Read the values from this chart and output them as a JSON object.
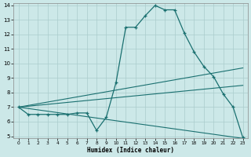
{
  "xlabel": "Humidex (Indice chaleur)",
  "background_color": "#cce8e8",
  "grid_color": "#aacccc",
  "line_color": "#1a7070",
  "x_values": [
    0,
    1,
    2,
    3,
    4,
    5,
    6,
    7,
    8,
    9,
    10,
    11,
    12,
    13,
    14,
    15,
    16,
    17,
    18,
    19,
    20,
    21,
    22,
    23
  ],
  "line1_y": [
    7.0,
    6.5,
    6.5,
    6.5,
    6.5,
    6.5,
    6.6,
    6.6,
    5.4,
    6.3,
    8.7,
    12.5,
    12.5,
    13.3,
    14.0,
    13.7,
    13.7,
    12.1,
    10.8,
    9.8,
    9.1,
    7.9,
    7.0,
    4.9
  ],
  "straight_lines": [
    [
      7.0,
      9.7
    ],
    [
      7.0,
      8.5
    ],
    [
      7.0,
      4.85
    ]
  ],
  "ylim": [
    5,
    14
  ],
  "xlim": [
    -0.5,
    23.5
  ],
  "yticks": [
    5,
    6,
    7,
    8,
    9,
    10,
    11,
    12,
    13,
    14
  ],
  "xticks": [
    0,
    1,
    2,
    3,
    4,
    5,
    6,
    7,
    8,
    9,
    10,
    11,
    12,
    13,
    14,
    15,
    16,
    17,
    18,
    19,
    20,
    21,
    22,
    23
  ]
}
